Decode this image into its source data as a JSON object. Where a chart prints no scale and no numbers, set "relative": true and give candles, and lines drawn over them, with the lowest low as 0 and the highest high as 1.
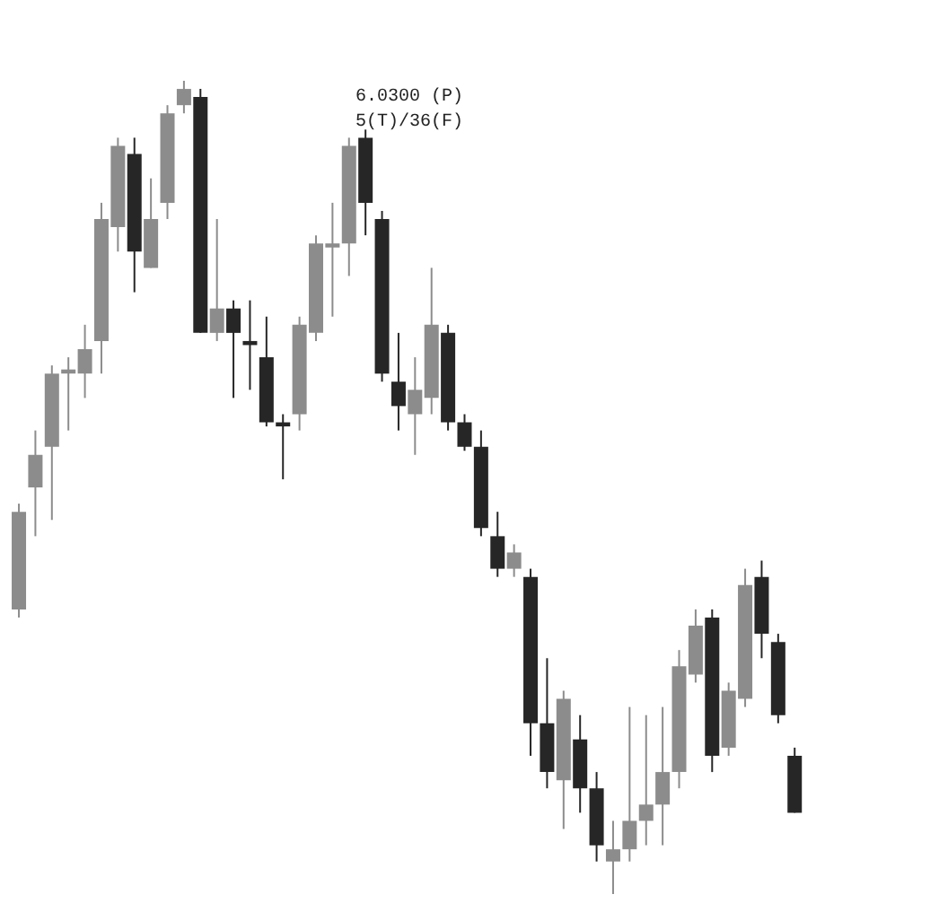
{
  "chart_data": {
    "type": "candlestick",
    "relative": true,
    "annotations": [
      "6.0300 (P)",
      "5(T)/36(F)"
    ],
    "categories": [
      null,
      null,
      null,
      null,
      null,
      null,
      null,
      null,
      null,
      null,
      null,
      null,
      null,
      null,
      null,
      null,
      null,
      null,
      null,
      null,
      null,
      null,
      null,
      null,
      null,
      null,
      null,
      null,
      null,
      null,
      null,
      null,
      null,
      null,
      null,
      null,
      null,
      null,
      null,
      null,
      null,
      null,
      null,
      null,
      null,
      null,
      null,
      null
    ],
    "ohlc": [
      [
        0.35,
        0.48,
        0.34,
        0.47
      ],
      [
        0.5,
        0.57,
        0.44,
        0.54
      ],
      [
        0.55,
        0.65,
        0.46,
        0.64
      ],
      [
        0.64,
        0.66,
        0.57,
        0.645
      ],
      [
        0.64,
        0.7,
        0.61,
        0.67
      ],
      [
        0.68,
        0.85,
        0.64,
        0.83
      ],
      [
        0.82,
        0.93,
        0.79,
        0.92
      ],
      [
        0.91,
        0.93,
        0.74,
        0.79
      ],
      [
        0.77,
        0.88,
        0.77,
        0.83
      ],
      [
        0.85,
        0.97,
        0.83,
        0.96
      ],
      [
        0.97,
        1.0,
        0.96,
        0.99
      ],
      [
        0.98,
        0.99,
        0.69,
        0.69
      ],
      [
        0.69,
        0.83,
        0.68,
        0.72
      ],
      [
        0.72,
        0.73,
        0.61,
        0.69
      ],
      [
        0.68,
        0.73,
        0.62,
        0.675
      ],
      [
        0.66,
        0.71,
        0.575,
        0.58
      ],
      [
        0.58,
        0.59,
        0.51,
        0.575
      ],
      [
        0.59,
        0.71,
        0.57,
        0.7
      ],
      [
        0.69,
        0.81,
        0.68,
        0.8
      ],
      [
        0.795,
        0.85,
        0.71,
        0.8
      ],
      [
        0.8,
        0.93,
        0.76,
        0.92
      ],
      [
        0.93,
        0.94,
        0.81,
        0.85
      ],
      [
        0.83,
        0.84,
        0.63,
        0.64
      ],
      [
        0.63,
        0.69,
        0.57,
        0.6
      ],
      [
        0.59,
        0.66,
        0.54,
        0.62
      ],
      [
        0.61,
        0.77,
        0.59,
        0.7
      ],
      [
        0.69,
        0.7,
        0.57,
        0.58
      ],
      [
        0.58,
        0.59,
        0.545,
        0.55
      ],
      [
        0.55,
        0.57,
        0.44,
        0.45
      ],
      [
        0.44,
        0.47,
        0.39,
        0.4
      ],
      [
        0.4,
        0.43,
        0.39,
        0.42
      ],
      [
        0.39,
        0.4,
        0.17,
        0.21
      ],
      [
        0.21,
        0.29,
        0.13,
        0.15
      ],
      [
        0.14,
        0.25,
        0.08,
        0.24
      ],
      [
        0.19,
        0.22,
        0.1,
        0.13
      ],
      [
        0.13,
        0.15,
        0.04,
        0.06
      ],
      [
        0.04,
        0.09,
        0.0,
        0.055
      ],
      [
        0.055,
        0.23,
        0.04,
        0.09
      ],
      [
        0.09,
        0.22,
        0.06,
        0.11
      ],
      [
        0.11,
        0.23,
        0.06,
        0.15
      ],
      [
        0.15,
        0.3,
        0.13,
        0.28
      ],
      [
        0.27,
        0.35,
        0.26,
        0.33
      ],
      [
        0.34,
        0.35,
        0.15,
        0.17
      ],
      [
        0.18,
        0.26,
        0.17,
        0.25
      ],
      [
        0.24,
        0.4,
        0.23,
        0.38
      ],
      [
        0.39,
        0.41,
        0.29,
        0.32
      ],
      [
        0.31,
        0.32,
        0.21,
        0.22
      ],
      [
        0.17,
        0.18,
        0.1,
        0.1
      ]
    ],
    "colors": [
      "#8c8c8c",
      "#8c8c8c",
      "#8c8c8c",
      "#8c8c8c",
      "#8c8c8c",
      "#8c8c8c",
      "#8c8c8c",
      "#262626",
      "#8c8c8c",
      "#8c8c8c",
      "#8c8c8c",
      "#262626",
      "#8c8c8c",
      "#262626",
      "#262626",
      "#262626",
      "#262626",
      "#8c8c8c",
      "#8c8c8c",
      "#8c8c8c",
      "#8c8c8c",
      "#262626",
      "#262626",
      "#262626",
      "#8c8c8c",
      "#8c8c8c",
      "#262626",
      "#262626",
      "#262626",
      "#262626",
      "#8c8c8c",
      "#262626",
      "#262626",
      "#8c8c8c",
      "#262626",
      "#262626",
      "#8c8c8c",
      "#8c8c8c",
      "#8c8c8c",
      "#8c8c8c",
      "#8c8c8c",
      "#8c8c8c",
      "#262626",
      "#8c8c8c",
      "#8c8c8c",
      "#262626",
      "#262626",
      "#262626"
    ]
  }
}
